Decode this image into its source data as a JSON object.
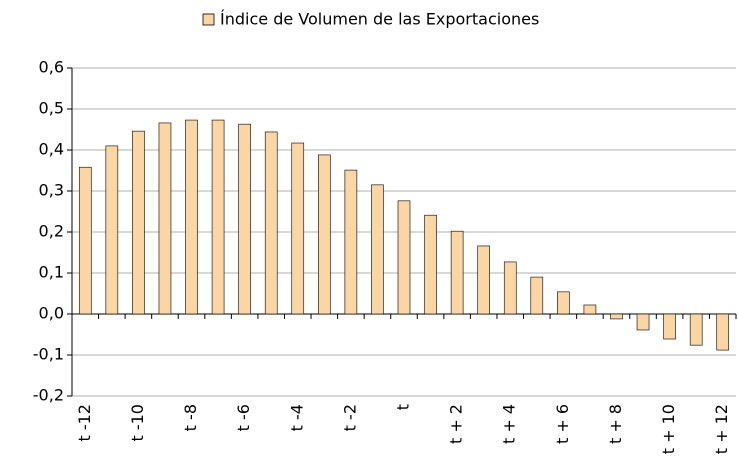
{
  "chart_data": {
    "type": "bar",
    "series": [
      {
        "name": "Índice de Volumen de las Exportaciones",
        "color": "#fcd5a5",
        "values": [
          0.358,
          0.41,
          0.446,
          0.466,
          0.473,
          0.473,
          0.463,
          0.444,
          0.417,
          0.388,
          0.351,
          0.315,
          0.276,
          0.241,
          0.202,
          0.166,
          0.127,
          0.09,
          0.054,
          0.022,
          -0.012,
          -0.039,
          -0.061,
          -0.076,
          -0.088
        ]
      }
    ],
    "categories": [
      "t -12",
      null,
      "t -10",
      null,
      "t -8",
      null,
      "t -6",
      null,
      "t -4",
      null,
      "t -2",
      null,
      "t",
      null,
      "t + 2",
      null,
      "t + 4",
      null,
      "t + 6",
      null,
      "t + 8",
      null,
      "t + 10",
      null,
      "t + 12"
    ],
    "ylim": [
      -0.2,
      0.6
    ],
    "yticks": [
      {
        "value": -0.2,
        "label": "-0,2"
      },
      {
        "value": -0.1,
        "label": "-0,1"
      },
      {
        "value": 0,
        "label": "0,0"
      },
      {
        "value": 0.1,
        "label": "0,1"
      },
      {
        "value": 0.2,
        "label": "0,2"
      },
      {
        "value": 0.3,
        "label": "0,3"
      },
      {
        "value": 0.4,
        "label": "0,4"
      },
      {
        "value": 0.5,
        "label": "0,5"
      },
      {
        "value": 0.6,
        "label": "0,6"
      }
    ],
    "grid": true,
    "legend": "top"
  }
}
